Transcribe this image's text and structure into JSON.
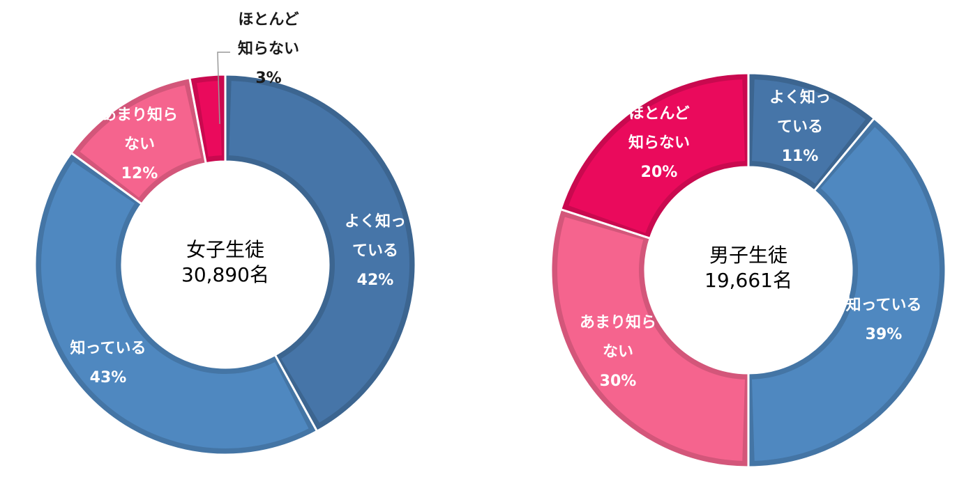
{
  "chart_data": [
    {
      "type": "pie",
      "title": "女子生徒",
      "subtitle": "30,890名",
      "slices": [
        {
          "label_lines": [
            "よく知っ",
            "ている"
          ],
          "value": 42,
          "value_label": "42%",
          "color": "#4675A8"
        },
        {
          "label_lines": [
            "知っている"
          ],
          "value": 43,
          "value_label": "43%",
          "color": "#4F88C0"
        },
        {
          "label_lines": [
            "あまり知ら",
            "ない"
          ],
          "value": 12,
          "value_label": "12%",
          "color": "#F5648E"
        },
        {
          "label_lines": [
            "ほとんど",
            "知らない"
          ],
          "value": 3,
          "value_label": "3%",
          "color": "#EA0A5C"
        }
      ]
    },
    {
      "type": "pie",
      "title": "男子生徒",
      "subtitle": "19,661名",
      "slices": [
        {
          "label_lines": [
            "よく知っ",
            "ている"
          ],
          "value": 11,
          "value_label": "11%",
          "color": "#4675A8"
        },
        {
          "label_lines": [
            "知っている"
          ],
          "value": 39,
          "value_label": "39%",
          "color": "#4F88C0"
        },
        {
          "label_lines": [
            "あまり知ら",
            "ない"
          ],
          "value": 30,
          "value_label": "30%",
          "color": "#F5648E"
        },
        {
          "label_lines": [
            "ほとんど",
            "知らない"
          ],
          "value": 20,
          "value_label": "20%",
          "color": "#EA0A5C"
        }
      ]
    }
  ]
}
